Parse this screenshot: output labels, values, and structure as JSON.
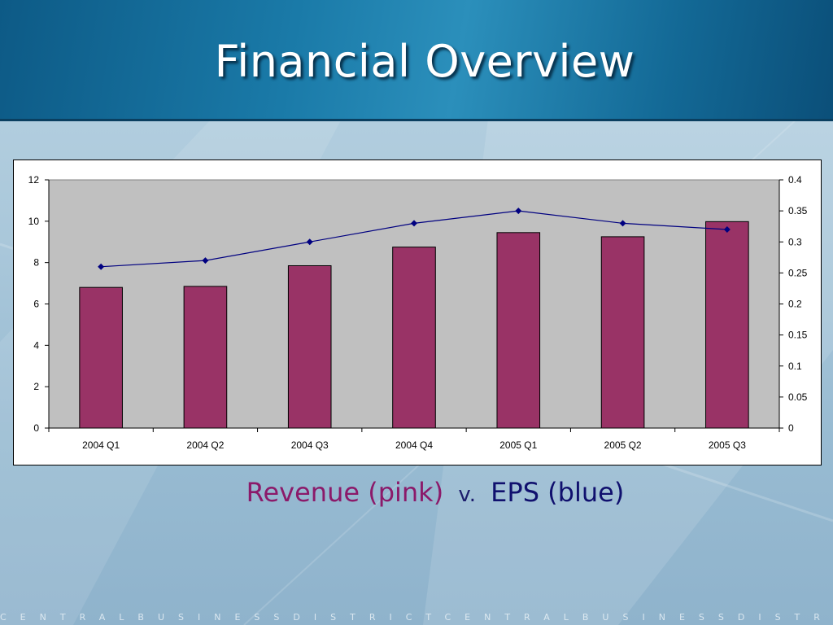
{
  "slide": {
    "title": "Financial Overview",
    "caption": {
      "revenue_label": "Revenue (pink)",
      "versus": "v.",
      "eps_label": "EPS (blue)"
    },
    "footer": "CENTRALBUSINESSDISTRICTCENTRALBUSINESSDISTRICTCENTRA"
  },
  "colors": {
    "bar_fill": "#993366",
    "line_color": "#000080",
    "plot_background": "#c0c0c0",
    "revenue_text": "#8b1a6a",
    "eps_text": "#10106e"
  },
  "chart_data": {
    "type": "bar",
    "categories": [
      "2004 Q1",
      "2004 Q2",
      "2004 Q3",
      "2004 Q4",
      "2005 Q1",
      "2005 Q2",
      "2005 Q3"
    ],
    "series": [
      {
        "type": "bar",
        "axis": "left",
        "values": [
          6.8,
          6.85,
          7.85,
          8.75,
          9.45,
          9.25,
          9.98
        ]
      },
      {
        "type": "line",
        "axis": "right",
        "values": [
          0.26,
          0.27,
          0.3,
          0.33,
          0.35,
          0.33,
          0.32
        ]
      }
    ],
    "ylim": [
      0,
      12
    ],
    "yticks": [
      "0",
      "2",
      "4",
      "6",
      "8",
      "10",
      "12"
    ],
    "ylim_right": [
      0,
      0.4
    ],
    "yticks_right": [
      "0",
      "0.05",
      "0.1",
      "0.15",
      "0.2",
      "0.25",
      "0.3",
      "0.35",
      "0.4"
    ],
    "grid": false,
    "legend": "none"
  }
}
